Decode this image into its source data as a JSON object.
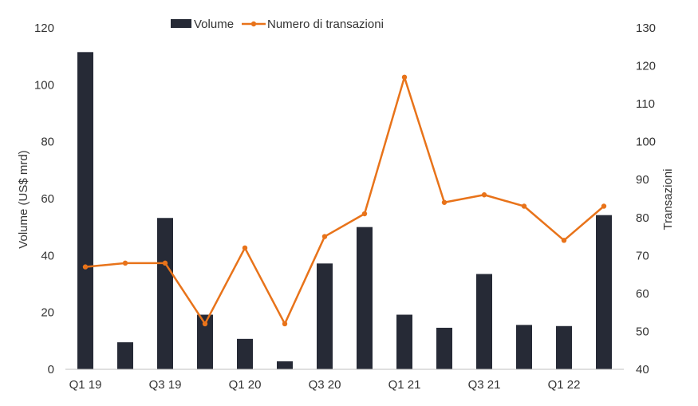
{
  "chart_data": {
    "type": "bar+line",
    "categories": [
      "Q1 19",
      "Q2 19",
      "Q3 19",
      "Q4 19",
      "Q1 20",
      "Q2 20",
      "Q3 20",
      "Q4 20",
      "Q1 21",
      "Q2 21",
      "Q3 21",
      "Q4 21",
      "Q1 22",
      "Q2 22"
    ],
    "x_tick_labels": [
      "Q1 19",
      "",
      "Q3 19",
      "",
      "Q1 20",
      "",
      "Q3 20",
      "",
      "Q1 21",
      "",
      "Q3 21",
      "",
      "Q1 22",
      ""
    ],
    "series": [
      {
        "name": "Volume",
        "type": "bar",
        "axis": "left",
        "color": "#262a36",
        "values": [
          111.5,
          9.5,
          53.2,
          19.2,
          10.7,
          2.8,
          37.2,
          50.0,
          19.2,
          14.6,
          33.5,
          15.6,
          15.2,
          54.2
        ]
      },
      {
        "name": "Numero di transazioni",
        "type": "line",
        "axis": "right",
        "color": "#e8731a",
        "values": [
          67,
          68,
          68,
          52,
          72,
          52,
          75,
          81,
          117,
          84,
          86,
          83,
          74,
          83
        ]
      }
    ],
    "y_left": {
      "label": "Volume (US$ mrd)",
      "min": 0,
      "max": 120,
      "ticks": [
        "0",
        "20",
        "40",
        "60",
        "80",
        "100",
        "120"
      ]
    },
    "y_right": {
      "label": "Transazioni",
      "min": 40,
      "max": 130,
      "ticks": [
        "40",
        "50",
        "60",
        "70",
        "80",
        "90",
        "100",
        "110",
        "120",
        "130"
      ]
    },
    "grid": false,
    "legend_position": "top-center"
  }
}
